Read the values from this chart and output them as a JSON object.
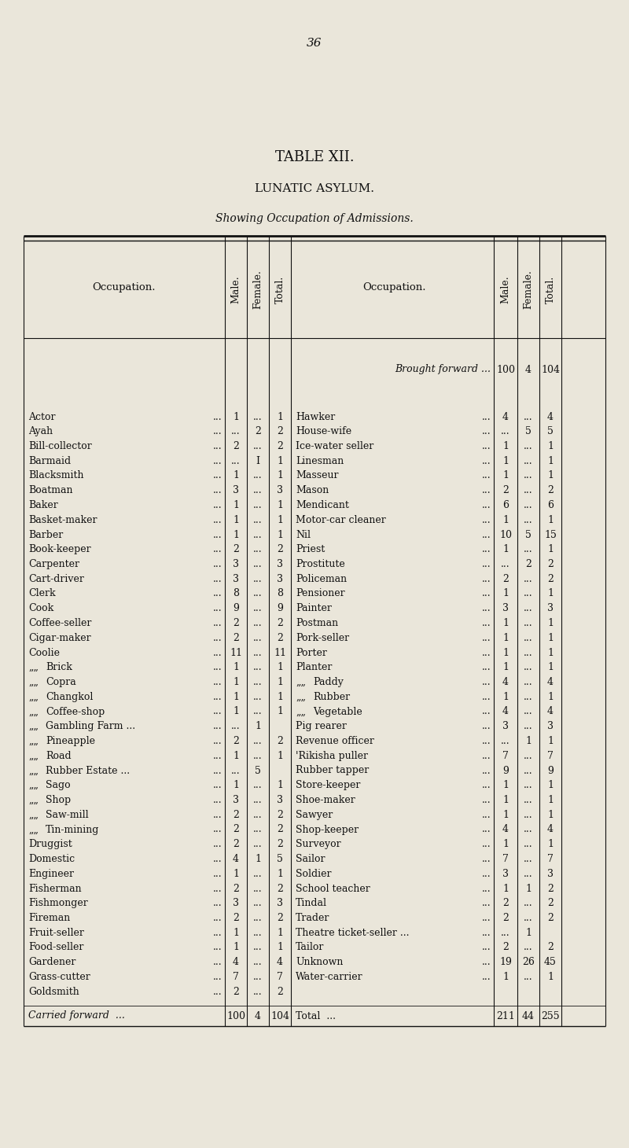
{
  "page_number": "36",
  "title1": "TABLE XII.",
  "title2": "LUNATIC ASYLUM.",
  "title3": "Showing Occupation of Admissions.",
  "bg_color": "#eae6da",
  "text_color": "#111111",
  "left_rows": [
    [
      "Actor",
      "...",
      "1",
      "...",
      "1"
    ],
    [
      "Ayah",
      "...",
      "...",
      "2",
      "2"
    ],
    [
      "Bill-collector",
      "...",
      "2",
      "...",
      "2"
    ],
    [
      "Barmaid",
      "...",
      "...",
      "I",
      "1"
    ],
    [
      "Blacksmith",
      "...",
      "1",
      "...",
      "1"
    ],
    [
      "Boatman",
      "...",
      "3",
      "...",
      "3"
    ],
    [
      "Baker",
      "...",
      "1",
      "...",
      "1"
    ],
    [
      "Basket-maker",
      "...",
      "1",
      "...",
      "1"
    ],
    [
      "Barber",
      "...",
      "1",
      "...",
      "1"
    ],
    [
      "Book-keeper",
      "...",
      "2",
      "...",
      "2"
    ],
    [
      "Carpenter",
      "...",
      "3",
      "...",
      "3"
    ],
    [
      "Cart-driver",
      "...",
      "3",
      "...",
      "3"
    ],
    [
      "Clerk",
      "...",
      "8",
      "...",
      "8"
    ],
    [
      "Cook",
      "...",
      "9",
      "...",
      "9"
    ],
    [
      "Coffee-seller",
      "...",
      "2",
      "...",
      "2"
    ],
    [
      "Cigar-maker",
      "...",
      "2",
      "...",
      "2"
    ],
    [
      "Coolie",
      "...",
      "11",
      "...",
      "11"
    ],
    [
      ",, Brick",
      "...",
      "1",
      "...",
      "1"
    ],
    [
      ",, Copra",
      "...",
      "1",
      "...",
      "1"
    ],
    [
      ",, Changkol",
      "...",
      "1",
      "...",
      "1"
    ],
    [
      ",, Coffee-shop",
      "...",
      "1",
      "...",
      "1"
    ],
    [
      ",, Gambling Farm ...",
      "1",
      "...",
      "1",
      ""
    ],
    [
      ",, Pineapple",
      "...",
      "2",
      "...",
      "2"
    ],
    [
      ",, Road",
      "...",
      "1",
      "...",
      "1"
    ],
    [
      ",, Rubber Estate ...",
      "5",
      "...",
      "5",
      ""
    ],
    [
      ",, Sago",
      "...",
      "1",
      "...",
      "1"
    ],
    [
      ",, Shop",
      "...",
      "3",
      "...",
      "3"
    ],
    [
      ",, Saw-mill",
      "...",
      "2",
      "...",
      "2"
    ],
    [
      ",, Tin-mining",
      "...",
      "2",
      "...",
      "2"
    ],
    [
      "Druggist",
      "...",
      "2",
      "...",
      "2"
    ],
    [
      "Domestic",
      "...",
      "4",
      "1",
      "5"
    ],
    [
      "Engineer",
      "...",
      "1",
      "...",
      "1"
    ],
    [
      "Fisherman",
      "...",
      "2",
      "...",
      "2"
    ],
    [
      "Fishmonger",
      "...",
      "3",
      "...",
      "3"
    ],
    [
      "Fireman",
      "...",
      "2",
      "...",
      "2"
    ],
    [
      "Fruit-seller",
      "...",
      "1",
      "...",
      "1"
    ],
    [
      "Food-seller",
      "...",
      "1",
      "...",
      "1"
    ],
    [
      "Gardener",
      "...",
      "4",
      "...",
      "4"
    ],
    [
      "Grass-cutter",
      "...",
      "7",
      "...",
      "7"
    ],
    [
      "Goldsmith",
      "...",
      "2",
      "...",
      "2"
    ]
  ],
  "left_footer": [
    "Carried forward  ...",
    "100",
    "4",
    "104"
  ],
  "right_header": [
    "Brought forward ...",
    "100",
    "4",
    "104"
  ],
  "right_rows": [
    [
      "Hawker",
      "...",
      "4",
      "...",
      "4"
    ],
    [
      "House-wife",
      "...",
      "...",
      "5",
      "5"
    ],
    [
      "Ice-water seller",
      "...",
      "1",
      "...",
      "1"
    ],
    [
      "Linesman",
      "...",
      "1",
      "...",
      "1"
    ],
    [
      "Masseur",
      "...",
      "1",
      "...",
      "1"
    ],
    [
      "Mason",
      "...",
      "2",
      "...",
      "2"
    ],
    [
      "Mendicant",
      "...",
      "6",
      "...",
      "6"
    ],
    [
      "Motor-car cleaner",
      "...",
      "1",
      "...",
      "1"
    ],
    [
      "Nil",
      "...",
      "10",
      "5",
      "15"
    ],
    [
      "Priest",
      "...",
      "1",
      "...",
      "1"
    ],
    [
      "Prostitute",
      "...",
      "...",
      "2",
      "2"
    ],
    [
      "Policeman",
      "...",
      "2",
      "...",
      "2"
    ],
    [
      "Pensioner",
      "...",
      "1",
      "...",
      "1"
    ],
    [
      "Painter",
      "...",
      "3",
      "...",
      "3"
    ],
    [
      "Postman",
      "...",
      "1",
      "...",
      "1"
    ],
    [
      "Pork-seller",
      "...",
      "1",
      "...",
      "1"
    ],
    [
      "Porter",
      "...",
      "1",
      "...",
      "1"
    ],
    [
      "Planter",
      "...",
      "1",
      "...",
      "1"
    ],
    [
      ",, Paddy",
      "...",
      "4",
      "...",
      "4"
    ],
    [
      ",, Rubber",
      "...",
      "1",
      "...",
      "1"
    ],
    [
      ",, Vegetable",
      "...",
      "4",
      "...",
      "4"
    ],
    [
      "Pig rearer",
      "...",
      "3",
      "...",
      "3"
    ],
    [
      "Revenue officer",
      "...",
      "...",
      "1",
      "1"
    ],
    [
      "'Rikisha puller",
      "...",
      "7",
      "...",
      "7"
    ],
    [
      "Rubber tapper",
      "...",
      "9",
      "...",
      "9"
    ],
    [
      "Store-keeper",
      "...",
      "1",
      "...",
      "1"
    ],
    [
      "Shoe-maker",
      "...",
      "1",
      "...",
      "1"
    ],
    [
      "Sawyer",
      "...",
      "1",
      "...",
      "1"
    ],
    [
      "Shop-keeper",
      "...",
      "4",
      "...",
      "4"
    ],
    [
      "Surveyor",
      "...",
      "1",
      "...",
      "1"
    ],
    [
      "Sailor",
      "...",
      "7",
      "...",
      "7"
    ],
    [
      "Soldier",
      "...",
      "3",
      "...",
      "3"
    ],
    [
      "School teacher",
      "...",
      "1",
      "1",
      "2"
    ],
    [
      "Tindal",
      "...",
      "2",
      "...",
      "2"
    ],
    [
      "Trader",
      "...",
      "2",
      "...",
      "2"
    ],
    [
      "Theatre ticket-seller ...",
      "1",
      "...",
      "1",
      ""
    ],
    [
      "Tailor",
      "...",
      "2",
      "...",
      "2"
    ],
    [
      "Unknown",
      "...",
      "19",
      "26",
      "45"
    ],
    [
      "Water-carrier",
      "...",
      "1",
      "...",
      "1"
    ]
  ],
  "right_footer": [
    "Total  ...",
    "211",
    "44",
    "255"
  ]
}
